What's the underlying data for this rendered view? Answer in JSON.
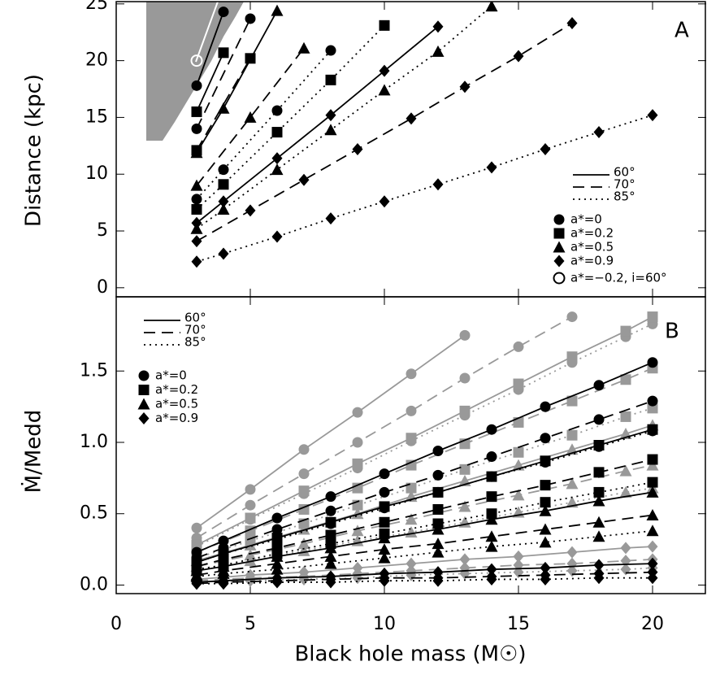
{
  "chart_data": [
    {
      "type": "line",
      "panel_label": "A",
      "y_label": "Distance (kpc)",
      "xlim": [
        0,
        22
      ],
      "ylim": [
        -0.8,
        25.2
      ],
      "yticks": [
        0,
        5,
        10,
        15,
        20,
        25
      ],
      "legend_lines": [
        "60°",
        "70°",
        "85°"
      ],
      "legend_markers": [
        "a*=0",
        "a*=0.2",
        "a*=0.5",
        "a*=0.9",
        "a*=−0.2, i=60°"
      ],
      "series": [
        {
          "marker": "circle",
          "line": "solid",
          "color": "#000000",
          "x": [
            3,
            4
          ],
          "values": [
            17.8,
            24.3
          ]
        },
        {
          "marker": "circle",
          "line": "dashed",
          "color": "#000000",
          "x": [
            3,
            5
          ],
          "values": [
            14.0,
            23.7
          ]
        },
        {
          "marker": "circle",
          "line": "dotted",
          "color": "#000000",
          "x": [
            3,
            4,
            6,
            8
          ],
          "values": [
            7.8,
            10.4,
            15.6,
            20.9
          ]
        },
        {
          "marker": "square",
          "line": "solid",
          "color": "#000000",
          "x": [
            3,
            4
          ],
          "values": [
            15.5,
            20.7
          ]
        },
        {
          "marker": "square",
          "line": "dashed",
          "color": "#000000",
          "x": [
            3,
            5
          ],
          "values": [
            12.1,
            20.2
          ]
        },
        {
          "marker": "square",
          "line": "dotted",
          "color": "#000000",
          "x": [
            3,
            4,
            6,
            8,
            10
          ],
          "values": [
            6.9,
            9.1,
            13.7,
            18.3,
            23.1
          ]
        },
        {
          "marker": "triangle",
          "line": "solid",
          "color": "#000000",
          "x": [
            3,
            4,
            6
          ],
          "values": [
            11.9,
            15.8,
            24.4
          ]
        },
        {
          "marker": "triangle",
          "line": "dashed",
          "color": "#000000",
          "x": [
            3,
            5,
            7
          ],
          "values": [
            9.0,
            15.0,
            21.1
          ]
        },
        {
          "marker": "triangle",
          "line": "dotted",
          "color": "#000000",
          "x": [
            3,
            4,
            6,
            8,
            10,
            12,
            14
          ],
          "values": [
            5.2,
            6.9,
            10.4,
            13.9,
            17.4,
            20.8,
            24.8
          ]
        },
        {
          "marker": "diamond",
          "line": "solid",
          "color": "#000000",
          "x": [
            3,
            4,
            6,
            8,
            10,
            12
          ],
          "values": [
            5.7,
            7.6,
            11.4,
            15.2,
            19.1,
            23.0
          ]
        },
        {
          "marker": "diamond",
          "line": "dashed",
          "color": "#000000",
          "x": [
            3,
            5,
            7,
            9,
            11,
            13,
            15,
            17
          ],
          "values": [
            4.1,
            6.8,
            9.5,
            12.2,
            14.9,
            17.7,
            20.4,
            23.3
          ]
        },
        {
          "marker": "diamond",
          "line": "dotted",
          "color": "#000000",
          "x": [
            3,
            4,
            6,
            8,
            10,
            12,
            14,
            16,
            18,
            20
          ],
          "values": [
            2.3,
            3.0,
            4.5,
            6.1,
            7.6,
            9.1,
            10.6,
            12.2,
            13.7,
            15.2
          ]
        },
        {
          "marker": "open-circle",
          "line": "none",
          "color": "#ffffff",
          "x": [
            3
          ],
          "values": [
            20.0
          ]
        }
      ]
    },
    {
      "type": "line",
      "panel_label": "B",
      "y_label": "Ṁ/Medd",
      "x_label": "Black hole mass (M☉)",
      "xlim": [
        0,
        22
      ],
      "xticks": [
        0,
        5,
        10,
        15,
        20
      ],
      "ylim": [
        -0.06,
        2.02
      ],
      "yticks": [
        {
          "value": 0,
          "label": "0.0"
        },
        0.5,
        {
          "value": 1,
          "label": "1.0"
        },
        1.5
      ],
      "legend_lines": [
        "60°",
        "70°",
        "85°"
      ],
      "legend_markers": [
        "a*=0",
        "a*=0.2",
        "a*=0.5",
        "a*=0.9"
      ],
      "series": [
        {
          "marker": "circle",
          "line": "solid",
          "color": "#999999",
          "x": [
            3,
            5,
            7,
            9,
            11,
            13
          ],
          "values": [
            0.4,
            0.67,
            0.95,
            1.21,
            1.48,
            1.75
          ]
        },
        {
          "marker": "circle",
          "line": "dashed",
          "color": "#999999",
          "x": [
            3,
            5,
            7,
            9,
            11,
            13,
            15,
            17
          ],
          "values": [
            0.33,
            0.56,
            0.78,
            1.0,
            1.22,
            1.45,
            1.67,
            1.88
          ]
        },
        {
          "marker": "circle",
          "line": "dotted",
          "color": "#999999",
          "x": [
            3,
            5,
            7,
            9,
            11,
            13,
            15,
            17,
            19,
            20
          ],
          "values": [
            0.27,
            0.46,
            0.64,
            0.82,
            1.01,
            1.19,
            1.37,
            1.56,
            1.74,
            1.83
          ]
        },
        {
          "marker": "square",
          "line": "solid",
          "color": "#999999",
          "x": [
            3,
            5,
            7,
            9,
            11,
            13,
            15,
            17,
            19,
            20
          ],
          "values": [
            0.28,
            0.47,
            0.66,
            0.85,
            1.03,
            1.22,
            1.41,
            1.6,
            1.78,
            1.88
          ]
        },
        {
          "marker": "square",
          "line": "dashed",
          "color": "#999999",
          "x": [
            3,
            5,
            7,
            9,
            11,
            13,
            15,
            17,
            19,
            20
          ],
          "values": [
            0.23,
            0.38,
            0.53,
            0.68,
            0.84,
            0.99,
            1.14,
            1.29,
            1.44,
            1.52
          ]
        },
        {
          "marker": "square",
          "line": "dotted",
          "color": "#999999",
          "x": [
            3,
            5,
            7,
            9,
            11,
            13,
            15,
            17,
            19,
            20
          ],
          "values": [
            0.19,
            0.31,
            0.43,
            0.56,
            0.68,
            0.81,
            0.93,
            1.05,
            1.18,
            1.24
          ]
        },
        {
          "marker": "triangle",
          "line": "solid",
          "color": "#999999",
          "x": [
            3,
            5,
            7,
            9,
            11,
            13,
            15,
            17,
            19,
            20
          ],
          "values": [
            0.17,
            0.28,
            0.39,
            0.5,
            0.62,
            0.73,
            0.84,
            0.95,
            1.06,
            1.12
          ]
        },
        {
          "marker": "triangle",
          "line": "dashed",
          "color": "#999999",
          "x": [
            3,
            5,
            7,
            9,
            11,
            13,
            15,
            17,
            19,
            20
          ],
          "values": [
            0.13,
            0.21,
            0.29,
            0.38,
            0.46,
            0.55,
            0.63,
            0.71,
            0.8,
            0.84
          ]
        },
        {
          "marker": "triangle",
          "line": "dotted",
          "color": "#999999",
          "x": [
            3,
            5,
            7,
            9,
            11,
            13,
            15,
            17,
            19,
            20
          ],
          "values": [
            0.1,
            0.17,
            0.24,
            0.31,
            0.37,
            0.44,
            0.51,
            0.58,
            0.65,
            0.68
          ]
        },
        {
          "marker": "diamond",
          "line": "solid",
          "color": "#999999",
          "x": [
            3,
            5,
            7,
            9,
            11,
            13,
            15,
            17,
            19,
            20
          ],
          "values": [
            0.04,
            0.07,
            0.09,
            0.12,
            0.15,
            0.18,
            0.2,
            0.23,
            0.26,
            0.27
          ]
        },
        {
          "marker": "diamond",
          "line": "dashed",
          "color": "#999999",
          "x": [
            3,
            5,
            7,
            9,
            11,
            13,
            15,
            17,
            19,
            20
          ],
          "values": [
            0.03,
            0.05,
            0.06,
            0.08,
            0.1,
            0.12,
            0.14,
            0.15,
            0.17,
            0.18
          ]
        },
        {
          "marker": "diamond",
          "line": "dotted",
          "color": "#999999",
          "x": [
            3,
            5,
            7,
            9,
            11,
            13,
            15,
            17,
            19,
            20
          ],
          "values": [
            0.02,
            0.03,
            0.04,
            0.05,
            0.07,
            0.08,
            0.09,
            0.1,
            0.11,
            0.12
          ]
        },
        {
          "marker": "circle",
          "line": "solid",
          "color": "#000000",
          "x": [
            3,
            4,
            6,
            8,
            10,
            12,
            14,
            16,
            18,
            20
          ],
          "values": [
            0.23,
            0.31,
            0.47,
            0.62,
            0.78,
            0.94,
            1.09,
            1.25,
            1.4,
            1.56
          ]
        },
        {
          "marker": "circle",
          "line": "dashed",
          "color": "#000000",
          "x": [
            3,
            4,
            6,
            8,
            10,
            12,
            14,
            16,
            18,
            20
          ],
          "values": [
            0.19,
            0.26,
            0.39,
            0.52,
            0.65,
            0.77,
            0.9,
            1.03,
            1.16,
            1.29
          ]
        },
        {
          "marker": "circle",
          "line": "dotted",
          "color": "#000000",
          "x": [
            3,
            4,
            6,
            8,
            10,
            12,
            14,
            16,
            18,
            20
          ],
          "values": [
            0.16,
            0.22,
            0.32,
            0.43,
            0.54,
            0.65,
            0.76,
            0.86,
            0.97,
            1.08
          ]
        },
        {
          "marker": "square",
          "line": "solid",
          "color": "#000000",
          "x": [
            3,
            4,
            6,
            8,
            10,
            12,
            14,
            16,
            18,
            20
          ],
          "values": [
            0.16,
            0.22,
            0.33,
            0.44,
            0.55,
            0.65,
            0.76,
            0.87,
            0.98,
            1.09
          ]
        },
        {
          "marker": "square",
          "line": "dashed",
          "color": "#000000",
          "x": [
            3,
            4,
            6,
            8,
            10,
            12,
            14,
            16,
            18,
            20
          ],
          "values": [
            0.13,
            0.18,
            0.26,
            0.35,
            0.44,
            0.53,
            0.62,
            0.7,
            0.79,
            0.88
          ]
        },
        {
          "marker": "square",
          "line": "dotted",
          "color": "#000000",
          "x": [
            3,
            4,
            6,
            8,
            10,
            12,
            14,
            16,
            18,
            20
          ],
          "values": [
            0.11,
            0.14,
            0.22,
            0.29,
            0.36,
            0.43,
            0.5,
            0.58,
            0.65,
            0.72
          ]
        },
        {
          "marker": "triangle",
          "line": "solid",
          "color": "#000000",
          "x": [
            3,
            4,
            6,
            8,
            10,
            12,
            14,
            16,
            18,
            20
          ],
          "values": [
            0.1,
            0.13,
            0.2,
            0.26,
            0.33,
            0.39,
            0.46,
            0.52,
            0.59,
            0.65
          ]
        },
        {
          "marker": "triangle",
          "line": "dashed",
          "color": "#000000",
          "x": [
            3,
            4,
            6,
            8,
            10,
            12,
            14,
            16,
            18,
            20
          ],
          "values": [
            0.07,
            0.1,
            0.15,
            0.2,
            0.25,
            0.29,
            0.34,
            0.39,
            0.44,
            0.49
          ]
        },
        {
          "marker": "triangle",
          "line": "dotted",
          "color": "#000000",
          "x": [
            3,
            4,
            6,
            8,
            10,
            12,
            14,
            16,
            18,
            20
          ],
          "values": [
            0.06,
            0.08,
            0.11,
            0.15,
            0.19,
            0.23,
            0.27,
            0.3,
            0.34,
            0.38
          ]
        },
        {
          "marker": "diamond",
          "line": "solid",
          "color": "#000000",
          "x": [
            3,
            4,
            6,
            8,
            10,
            12,
            14,
            16,
            18,
            20
          ],
          "values": [
            0.02,
            0.03,
            0.05,
            0.06,
            0.08,
            0.09,
            0.11,
            0.12,
            0.14,
            0.15
          ]
        },
        {
          "marker": "diamond",
          "line": "dashed",
          "color": "#000000",
          "x": [
            3,
            4,
            6,
            8,
            10,
            12,
            14,
            16,
            18,
            20
          ],
          "values": [
            0.01,
            0.02,
            0.03,
            0.04,
            0.05,
            0.05,
            0.06,
            0.07,
            0.08,
            0.09
          ]
        },
        {
          "marker": "diamond",
          "line": "dotted",
          "color": "#000000",
          "x": [
            3,
            4,
            6,
            8,
            10,
            12,
            14,
            16,
            18,
            20
          ],
          "values": [
            0.01,
            0.01,
            0.02,
            0.02,
            0.03,
            0.03,
            0.04,
            0.04,
            0.05,
            0.05
          ]
        }
      ]
    }
  ]
}
